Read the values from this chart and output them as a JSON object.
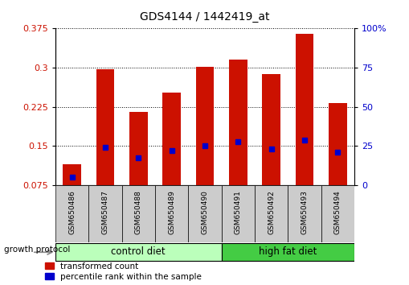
{
  "title": "GDS4144 / 1442419_at",
  "samples": [
    "GSM650486",
    "GSM650487",
    "GSM650488",
    "GSM650489",
    "GSM650490",
    "GSM650491",
    "GSM650492",
    "GSM650493",
    "GSM650494"
  ],
  "red_values": [
    0.115,
    0.297,
    0.215,
    0.252,
    0.302,
    0.315,
    0.288,
    0.365,
    0.232
  ],
  "blue_values": [
    0.09,
    0.148,
    0.127,
    0.142,
    0.15,
    0.158,
    0.145,
    0.162,
    0.138
  ],
  "ylim_left": [
    0.075,
    0.375
  ],
  "yticks_left": [
    0.075,
    0.15,
    0.225,
    0.3,
    0.375
  ],
  "yticks_right": [
    0,
    25,
    50,
    75,
    100
  ],
  "ylim_right": [
    0,
    100
  ],
  "bar_color": "#cc1100",
  "marker_color": "#0000cc",
  "plot_bg_color": "#ffffff",
  "sample_box_color": "#cccccc",
  "control_color": "#bbffbb",
  "high_fat_color": "#44cc44",
  "legend_red_label": "transformed count",
  "legend_blue_label": "percentile rank within the sample",
  "growth_protocol_label": "growth protocol",
  "control_label": "control diet",
  "high_fat_label": "high fat diet",
  "n_control": 5,
  "n_highfat": 4
}
